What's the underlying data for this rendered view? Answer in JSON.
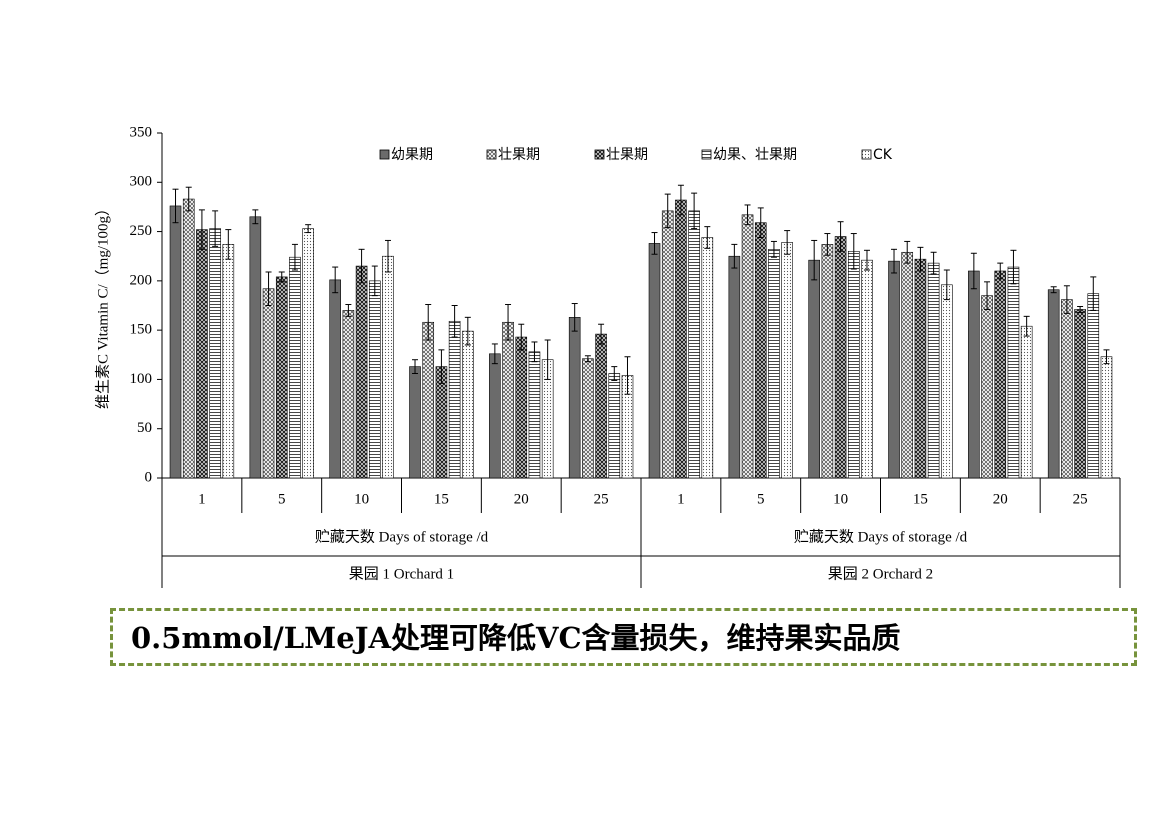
{
  "chart_data": {
    "type": "bar",
    "y_label": "维生素C Vitamin C/（mg/100g）",
    "categories": [
      "1",
      "5",
      "10",
      "15",
      "20",
      "25",
      "1",
      "5",
      "10",
      "15",
      "20",
      "25"
    ],
    "groups": [
      {
        "x_label": "贮藏天数 Days of storage /d",
        "name": "果园 1 Orchard 1"
      },
      {
        "x_label": "贮藏天数 Days of storage /d",
        "name": "果园 2 Orchard 2"
      }
    ],
    "ylim": [
      0,
      350
    ],
    "yticks": [
      0,
      50,
      100,
      150,
      200,
      250,
      300,
      350
    ],
    "legend": "top",
    "series": [
      {
        "name": "幼果期",
        "color": "#6b6b6b",
        "values": [
          276,
          265,
          201,
          113,
          126,
          163,
          238,
          225,
          221,
          220,
          210,
          191
        ],
        "errors": [
          17,
          7,
          13,
          7,
          10,
          14,
          11,
          12,
          20,
          12,
          18,
          3
        ]
      },
      {
        "name": "壮果期",
        "color": "#ffffff",
        "values": [
          283,
          192,
          170,
          158,
          158,
          121,
          271,
          267,
          237,
          229,
          185,
          181
        ],
        "errors": [
          12,
          17,
          6,
          18,
          18,
          3,
          17,
          10,
          11,
          11,
          14,
          14
        ]
      },
      {
        "name": "壮果期",
        "color": "#ffffff",
        "values": [
          252,
          204,
          215,
          113,
          143,
          146,
          282,
          259,
          245,
          222,
          210,
          171
        ],
        "errors": [
          20,
          5,
          17,
          17,
          13,
          10,
          15,
          15,
          15,
          12,
          8,
          3
        ]
      },
      {
        "name": "幼果、壮果期",
        "color": "#ffffff",
        "values": [
          253,
          224,
          200,
          159,
          128,
          106,
          271,
          232,
          230,
          218,
          214,
          187
        ],
        "errors": [
          18,
          13,
          15,
          16,
          10,
          7,
          18,
          8,
          18,
          11,
          17,
          17
        ]
      },
      {
        "name": "CK",
        "color": "#ffffff",
        "values": [
          237,
          253,
          225,
          149,
          120,
          104,
          244,
          239,
          221,
          196,
          154,
          123
        ],
        "errors": [
          15,
          4,
          16,
          14,
          20,
          19,
          11,
          12,
          10,
          15,
          10,
          7
        ]
      }
    ]
  },
  "caption": "0.5mmol/LMeJA处理可降低VC含量损失，维持果实品质"
}
